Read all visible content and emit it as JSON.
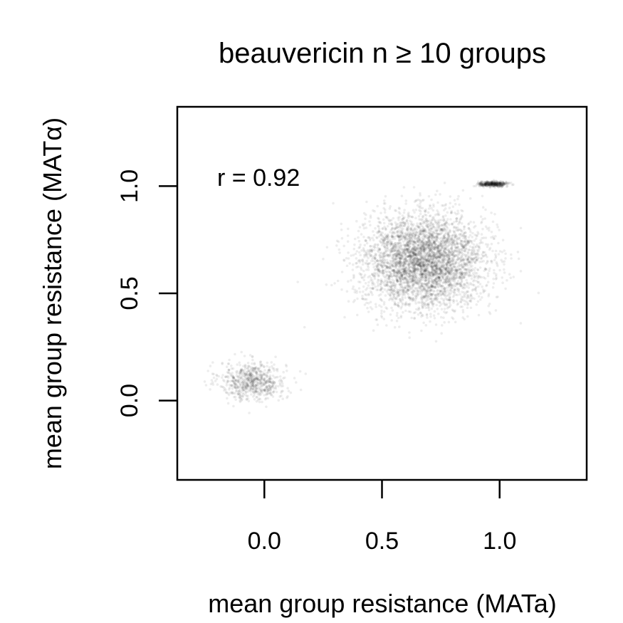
{
  "chart_data": {
    "type": "scatter",
    "title": "beauvericin n ≥ 10 groups",
    "xlabel": "mean group resistance (MATa)",
    "ylabel": "mean group resistance (MATα)",
    "xlim": [
      -0.37,
      1.37
    ],
    "ylim": [
      -0.37,
      1.37
    ],
    "x_ticks": [
      {
        "value": 0.0,
        "label": "0.0"
      },
      {
        "value": 0.5,
        "label": "0.5"
      },
      {
        "value": 1.0,
        "label": "1.0"
      }
    ],
    "y_ticks": [
      {
        "value": 0.0,
        "label": "0.0"
      },
      {
        "value": 0.5,
        "label": "0.5"
      },
      {
        "value": 1.0,
        "label": "1.0"
      }
    ],
    "annotation": "r = 0.92",
    "grid": false,
    "point_color": "#000000",
    "series": [
      {
        "clusters": [
          {
            "center": [
              -0.05,
              0.09
            ],
            "spread": [
              0.07,
              0.045
            ],
            "n_points": 700
          },
          {
            "center": [
              0.68,
              0.65
            ],
            "spread": [
              0.13,
              0.11
            ],
            "n_points": 4200
          },
          {
            "center": [
              0.97,
              1.01
            ],
            "spread": [
              0.03,
              0.006
            ],
            "n_points": 400
          }
        ]
      }
    ]
  }
}
